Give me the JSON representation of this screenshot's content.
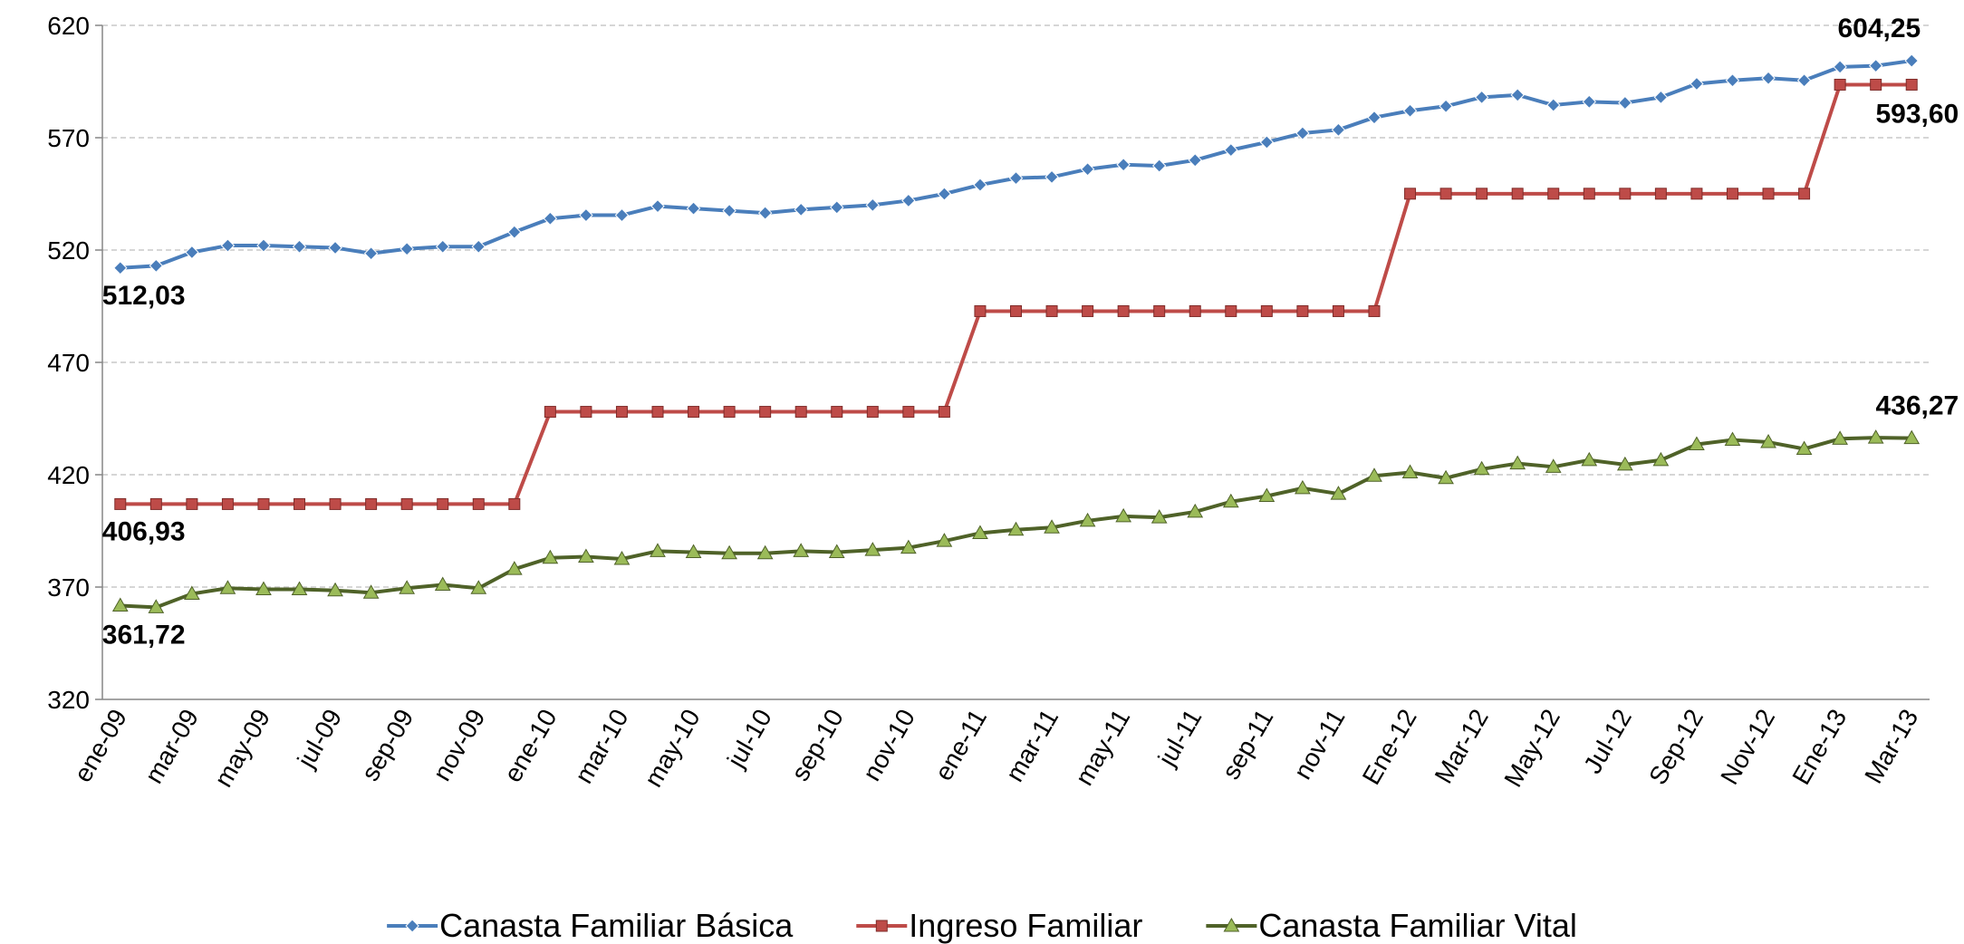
{
  "chart_data": {
    "type": "line",
    "categories": [
      "ene-09",
      null,
      "mar-09",
      null,
      "may-09",
      null,
      "jul-09",
      null,
      "sep-09",
      null,
      "nov-09",
      null,
      "ene-10",
      null,
      "mar-10",
      null,
      "may-10",
      null,
      "jul-10",
      null,
      "sep-10",
      null,
      "nov-10",
      null,
      "ene-11",
      null,
      "mar-11",
      null,
      "may-11",
      null,
      "jul-11",
      null,
      "sep-11",
      null,
      "nov-11",
      null,
      "Ene-12",
      null,
      "Mar-12",
      null,
      "May-12",
      null,
      "Jul-12",
      null,
      "Sep-12",
      null,
      "Nov-12",
      null,
      "Ene-13",
      null,
      "Mar-13"
    ],
    "series": [
      {
        "name": "Canasta Familiar Básica",
        "color": "#4a7ebb",
        "marker": "diamond",
        "values": [
          512.03,
          513,
          519,
          522,
          522,
          521.5,
          521,
          518.5,
          520.5,
          521.5,
          521.5,
          528,
          534,
          535.5,
          535.5,
          539.5,
          538.5,
          537.5,
          536.5,
          538,
          539,
          540,
          542,
          545,
          549,
          552,
          552.5,
          556,
          558,
          557.5,
          560,
          564.5,
          568,
          572,
          573.5,
          579,
          582,
          584,
          588,
          589,
          584.5,
          586,
          585.5,
          588,
          594,
          595.5,
          596.5,
          595.5,
          601.5,
          602,
          604.25
        ],
        "value_labels": [
          "512,03",
          null,
          null,
          null,
          null,
          null,
          null,
          null,
          null,
          null,
          null,
          null,
          null,
          null,
          null,
          null,
          null,
          null,
          null,
          null,
          null,
          null,
          null,
          null,
          null,
          null,
          null,
          null,
          null,
          null,
          null,
          null,
          null,
          null,
          null,
          null,
          null,
          null,
          null,
          null,
          null,
          null,
          null,
          null,
          null,
          null,
          null,
          null,
          null,
          null,
          "604,25"
        ]
      },
      {
        "name": "Ingreso Familiar",
        "color": "#be4b48",
        "marker": "square",
        "values": [
          406.93,
          406.93,
          406.93,
          406.93,
          406.93,
          406.93,
          406.93,
          406.93,
          406.93,
          406.93,
          406.93,
          406.93,
          448,
          448,
          448,
          448,
          448,
          448,
          448,
          448,
          448,
          448,
          448,
          448,
          492.8,
          492.8,
          492.8,
          492.8,
          492.8,
          492.8,
          492.8,
          492.8,
          492.8,
          492.8,
          492.8,
          492.8,
          545.07,
          545.07,
          545.07,
          545.07,
          545.07,
          545.07,
          545.07,
          545.07,
          545.07,
          545.07,
          545.07,
          545.07,
          593.6,
          593.6,
          593.6
        ],
        "value_labels": [
          "406,93",
          null,
          null,
          null,
          null,
          null,
          null,
          null,
          null,
          null,
          null,
          null,
          null,
          null,
          null,
          null,
          null,
          null,
          null,
          null,
          null,
          null,
          null,
          null,
          null,
          null,
          null,
          null,
          null,
          null,
          null,
          null,
          null,
          null,
          null,
          null,
          null,
          null,
          null,
          null,
          null,
          null,
          null,
          null,
          null,
          null,
          null,
          null,
          null,
          null,
          "593,60"
        ]
      },
      {
        "name": "Canasta Familiar Vital",
        "color": "#4f6228",
        "marker": "triangle",
        "values": [
          361.72,
          361,
          367,
          369.5,
          369,
          369,
          368.5,
          367.5,
          369.5,
          371,
          369.5,
          378,
          383,
          383.5,
          382.5,
          386,
          385.5,
          385,
          385,
          386,
          385.5,
          386.5,
          387.5,
          390.5,
          394,
          395.5,
          396.5,
          399.5,
          401.5,
          401,
          403.5,
          408,
          410.5,
          414,
          411.5,
          419.5,
          421,
          418.5,
          422.5,
          425,
          423.5,
          426.5,
          424.5,
          426.5,
          433.5,
          435.5,
          434.5,
          431.5,
          436,
          436.5,
          436.27
        ],
        "value_labels": [
          "361,72",
          null,
          null,
          null,
          null,
          null,
          null,
          null,
          null,
          null,
          null,
          null,
          null,
          null,
          null,
          null,
          null,
          null,
          null,
          null,
          null,
          null,
          null,
          null,
          null,
          null,
          null,
          null,
          null,
          null,
          null,
          null,
          null,
          null,
          null,
          null,
          null,
          null,
          null,
          null,
          null,
          null,
          null,
          null,
          null,
          null,
          null,
          null,
          null,
          null,
          "436,27"
        ]
      }
    ],
    "ylim": [
      320,
      620
    ],
    "yticks": [
      320,
      370,
      420,
      470,
      520,
      570,
      620
    ],
    "grid": true,
    "legend": "bottom"
  }
}
